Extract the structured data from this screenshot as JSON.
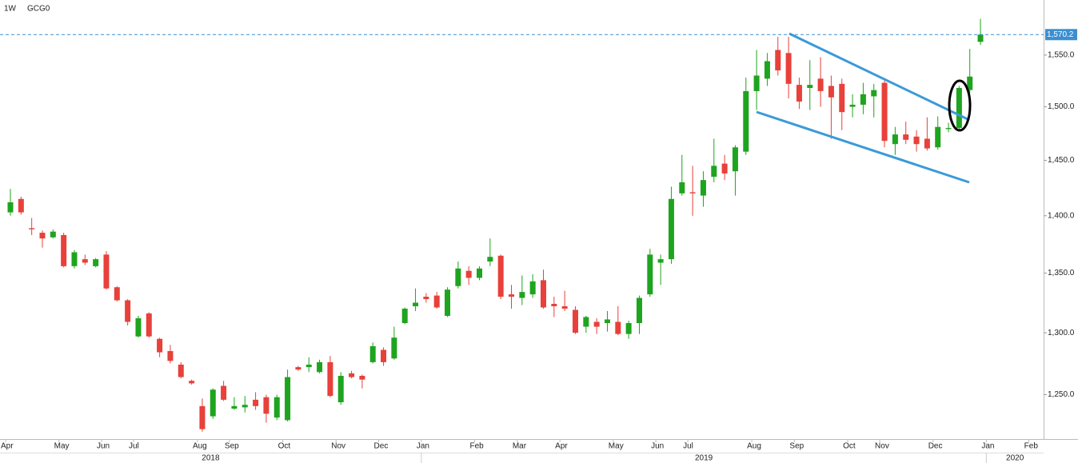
{
  "chart_data": {
    "type": "candlestick",
    "interval": "1W",
    "symbol": "GCG0",
    "log_scale": true,
    "up_color": "#1ea41e",
    "down_color": "#e8403a",
    "ylim": [
      1216,
      1605
    ],
    "yticks": [
      {
        "value": 1250,
        "label": "1,250.0"
      },
      {
        "value": 1300,
        "label": "1,300.0"
      },
      {
        "value": 1350,
        "label": "1,350.0"
      },
      {
        "value": 1400,
        "label": "1,400.0"
      },
      {
        "value": 1450,
        "label": "1,450.0"
      },
      {
        "value": 1500,
        "label": "1,500.0"
      },
      {
        "value": 1550,
        "label": "1,550.0"
      }
    ],
    "last_price": {
      "value": 1570.2,
      "label": "1,570.2"
    },
    "years": [
      "2018",
      "2019",
      "2020"
    ],
    "categories": [
      "Apr",
      null,
      null,
      null,
      null,
      "May",
      null,
      null,
      null,
      "Jun",
      null,
      null,
      "Jul",
      null,
      null,
      null,
      null,
      null,
      "Aug",
      null,
      null,
      "Sep",
      null,
      null,
      null,
      null,
      "Oct",
      null,
      null,
      null,
      null,
      "Nov",
      null,
      null,
      null,
      "Dec",
      null,
      null,
      null,
      "Jan",
      null,
      null,
      null,
      null,
      "Feb",
      null,
      null,
      null,
      "Mar",
      null,
      null,
      null,
      "Apr",
      null,
      null,
      null,
      null,
      "May",
      null,
      null,
      null,
      "Jun",
      null,
      null,
      "Jul",
      null,
      null,
      null,
      null,
      null,
      "Aug",
      null,
      null,
      null,
      "Sep",
      null,
      null,
      null,
      null,
      "Oct",
      null,
      null,
      "Nov",
      null,
      null,
      null,
      null,
      "Dec",
      null,
      null,
      null,
      null,
      "Jan",
      null,
      null,
      null,
      "Feb"
    ],
    "open": [
      1403,
      1415,
      1389,
      1385,
      1381,
      1383,
      1356,
      1362,
      1356,
      1366,
      1338,
      1327,
      1297,
      1316,
      1295,
      1285,
      1274,
      1261,
      1241,
      1233,
      1257,
      1239,
      1240,
      1246,
      1248,
      1232,
      1230,
      1272,
      1272,
      1268,
      1276,
      1244,
      1267,
      1265,
      1276,
      1286,
      1279,
      1308,
      1322,
      1330,
      1331,
      1314,
      1339,
      1352,
      1346,
      1360,
      1365,
      1332,
      1329,
      1332,
      1344,
      1324,
      1322,
      1319,
      1305,
      1309,
      1308,
      1309,
      1299,
      1308,
      1332,
      1359,
      1362,
      1420,
      1421,
      1418,
      1435,
      1447,
      1440,
      1458,
      1515,
      1527,
      1555,
      1552,
      1521,
      1518,
      1527,
      1520,
      1522,
      1500,
      1502,
      1510,
      1523,
      1465,
      1474,
      1472,
      1470,
      1462,
      1479,
      1480,
      1516,
      1563,
      null,
      null,
      null,
      null,
      null
    ],
    "high": [
      1424,
      1417,
      1398,
      1387,
      1388,
      1385,
      1370,
      1366,
      1363,
      1369,
      1339,
      1328,
      1314,
      1317,
      1296,
      1290,
      1276,
      1262,
      1247,
      1255,
      1261,
      1248,
      1249,
      1252,
      1250,
      1250,
      1270,
      1273,
      1280,
      1278,
      1281,
      1268,
      1269,
      1266,
      1292,
      1288,
      1305,
      1321,
      1337,
      1333,
      1334,
      1338,
      1360,
      1356,
      1356,
      1380,
      1366,
      1340,
      1348,
      1349,
      1353,
      1330,
      1335,
      1322,
      1314,
      1312,
      1318,
      1322,
      1310,
      1331,
      1371,
      1366,
      1426,
      1455,
      1445,
      1440,
      1470,
      1455,
      1464,
      1528,
      1555,
      1552,
      1568,
      1568,
      1528,
      1545,
      1548,
      1530,
      1527,
      1512,
      1523,
      1522,
      1525,
      1481,
      1486,
      1478,
      1490,
      1491,
      1485,
      1520,
      1556,
      1586,
      null,
      null,
      null,
      null,
      null
    ],
    "low": [
      1400,
      1401,
      1383,
      1372,
      1380,
      1355,
      1354,
      1357,
      1355,
      1336,
      1326,
      1306,
      1296,
      1296,
      1280,
      1275,
      1263,
      1258,
      1221,
      1231,
      1245,
      1238,
      1236,
      1238,
      1228,
      1230,
      1229,
      1269,
      1268,
      1267,
      1248,
      1242,
      1263,
      1255,
      1275,
      1273,
      1278,
      1307,
      1318,
      1325,
      1320,
      1313,
      1337,
      1340,
      1344,
      1356,
      1328,
      1320,
      1323,
      1329,
      1320,
      1313,
      1318,
      1299,
      1300,
      1299,
      1301,
      1298,
      1295,
      1299,
      1330,
      1340,
      1358,
      1418,
      1400,
      1408,
      1430,
      1432,
      1418,
      1455,
      1497,
      1520,
      1530,
      1508,
      1498,
      1497,
      1500,
      1470,
      1478,
      1490,
      1493,
      1490,
      1462,
      1455,
      1465,
      1458,
      1459,
      1460,
      1476,
      1478,
      1513,
      1560,
      null,
      null,
      null,
      null,
      null
    ],
    "close": [
      1412,
      1403,
      1388,
      1380,
      1386,
      1356,
      1368,
      1359,
      1362,
      1337,
      1327,
      1309,
      1312,
      1297,
      1284,
      1277,
      1264,
      1259,
      1223,
      1254,
      1246,
      1241,
      1242,
      1241,
      1235,
      1248,
      1264,
      1270,
      1274,
      1276,
      1249,
      1265,
      1264,
      1262,
      1289,
      1276,
      1296,
      1320,
      1325,
      1328,
      1321,
      1336,
      1354,
      1346,
      1354,
      1364,
      1330,
      1330,
      1334,
      1343,
      1321,
      1322,
      1320,
      1300,
      1313,
      1305,
      1311,
      1299,
      1308,
      1329,
      1366,
      1362,
      1415,
      1430,
      1420,
      1432,
      1445,
      1438,
      1462,
      1515,
      1530,
      1544,
      1535,
      1522,
      1505,
      1521,
      1515,
      1509,
      1495,
      1502,
      1512,
      1516,
      1468,
      1474,
      1469,
      1465,
      1461,
      1481,
      1480,
      1518,
      1529,
      1570.2,
      null,
      null,
      null,
      null,
      null
    ]
  }
}
